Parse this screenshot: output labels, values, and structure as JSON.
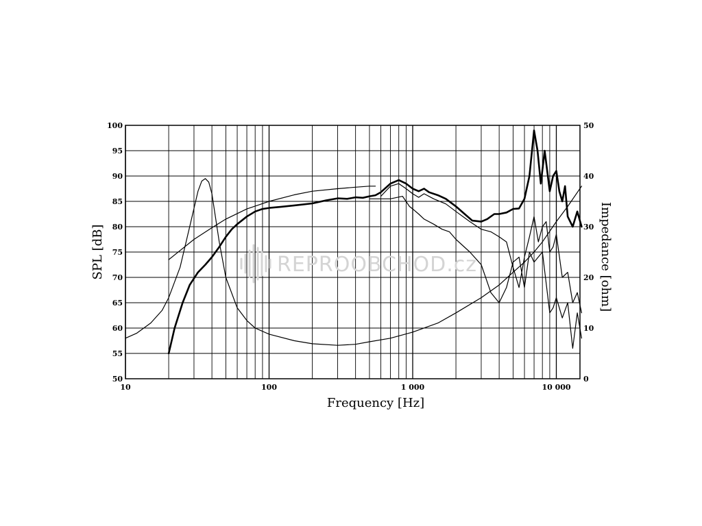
{
  "chart_data": {
    "type": "line",
    "xlabel": "Frequency [Hz]",
    "ylabel_left": "SPL [dB]",
    "ylabel_right": "Impedance [ohm]",
    "x_scale": "log",
    "xlim": [
      10,
      15000
    ],
    "ylim_left": [
      50,
      100
    ],
    "ylim_right": [
      0,
      50
    ],
    "grid": true,
    "x_tick_labels": [
      {
        "value": 10,
        "label": "10"
      },
      {
        "value": 100,
        "label": "100"
      },
      {
        "value": 1000,
        "label": "1 000"
      },
      {
        "value": 10000,
        "label": "10 000"
      }
    ],
    "y_left_ticks": [
      "50",
      "55",
      "60",
      "65",
      "70",
      "75",
      "80",
      "85",
      "90",
      "95",
      "100"
    ],
    "y_right_ticks": [
      "0",
      "10",
      "20",
      "30",
      "40",
      "50"
    ],
    "watermark": "REPROOBCHOD.cz",
    "series": [
      {
        "axis": "left",
        "stroke": "#000000",
        "weight": "heavy",
        "points": [
          [
            20,
            55
          ],
          [
            22,
            60
          ],
          [
            25,
            65
          ],
          [
            28,
            68.5
          ],
          [
            32,
            71
          ],
          [
            36,
            72.5
          ],
          [
            40,
            74
          ],
          [
            45,
            76
          ],
          [
            50,
            78
          ],
          [
            55,
            79.5
          ],
          [
            60,
            80.5
          ],
          [
            70,
            82
          ],
          [
            80,
            83
          ],
          [
            90,
            83.5
          ],
          [
            100,
            83.7
          ],
          [
            120,
            83.9
          ],
          [
            150,
            84.2
          ],
          [
            200,
            84.6
          ],
          [
            250,
            85.2
          ],
          [
            300,
            85.6
          ],
          [
            350,
            85.5
          ],
          [
            400,
            85.8
          ],
          [
            450,
            85.7
          ],
          [
            500,
            86
          ],
          [
            550,
            86.2
          ],
          [
            600,
            86.8
          ],
          [
            700,
            88.5
          ],
          [
            800,
            89.2
          ],
          [
            900,
            88.5
          ],
          [
            1000,
            87.5
          ],
          [
            1100,
            87
          ],
          [
            1200,
            87.5
          ],
          [
            1300,
            86.8
          ],
          [
            1500,
            86.2
          ],
          [
            1700,
            85.5
          ],
          [
            2000,
            84
          ],
          [
            2300,
            82.5
          ],
          [
            2600,
            81.2
          ],
          [
            3000,
            81
          ],
          [
            3300,
            81.5
          ],
          [
            3700,
            82.5
          ],
          [
            4000,
            82.5
          ],
          [
            4500,
            82.8
          ],
          [
            5000,
            83.5
          ],
          [
            5500,
            83.6
          ],
          [
            6000,
            85.5
          ],
          [
            6500,
            90
          ],
          [
            7000,
            99
          ],
          [
            7400,
            95
          ],
          [
            7800,
            88.5
          ],
          [
            8300,
            95
          ],
          [
            9000,
            87
          ],
          [
            9500,
            90
          ],
          [
            10000,
            91
          ],
          [
            10500,
            87
          ],
          [
            11000,
            85
          ],
          [
            11500,
            88
          ],
          [
            12000,
            82
          ],
          [
            13000,
            80
          ],
          [
            14000,
            83
          ],
          [
            15000,
            80
          ]
        ]
      },
      {
        "axis": "left",
        "stroke": "#000000",
        "weight": "thin",
        "points": [
          [
            600,
            86
          ],
          [
            700,
            88
          ],
          [
            800,
            88.5
          ],
          [
            900,
            87.5
          ],
          [
            1000,
            86.5
          ],
          [
            1100,
            85.8
          ],
          [
            1200,
            86.5
          ],
          [
            1400,
            85.5
          ],
          [
            1700,
            84.5
          ],
          [
            2000,
            83
          ],
          [
            2500,
            81
          ],
          [
            3000,
            79.5
          ],
          [
            3500,
            79
          ],
          [
            4000,
            78
          ],
          [
            4500,
            77
          ],
          [
            5000,
            72
          ],
          [
            5500,
            68
          ],
          [
            6000,
            74
          ],
          [
            6500,
            78
          ],
          [
            7000,
            82
          ],
          [
            7500,
            77
          ],
          [
            8000,
            80
          ],
          [
            8500,
            81
          ],
          [
            9000,
            75
          ],
          [
            9500,
            76
          ],
          [
            10000,
            78.5
          ],
          [
            11000,
            70
          ],
          [
            12000,
            71
          ],
          [
            13000,
            65
          ],
          [
            14000,
            67
          ],
          [
            15000,
            63
          ]
        ]
      },
      {
        "axis": "left",
        "stroke": "#000000",
        "weight": "thin",
        "points": [
          [
            500,
            85.5
          ],
          [
            700,
            85.5
          ],
          [
            850,
            86
          ],
          [
            950,
            84
          ],
          [
            1000,
            83.5
          ],
          [
            1100,
            82.5
          ],
          [
            1200,
            81.5
          ],
          [
            1400,
            80.5
          ],
          [
            1600,
            79.5
          ],
          [
            1800,
            79
          ],
          [
            2000,
            77.5
          ],
          [
            2500,
            75
          ],
          [
            3000,
            72.5
          ],
          [
            3500,
            67
          ],
          [
            4000,
            65
          ],
          [
            4500,
            68
          ],
          [
            5000,
            73
          ],
          [
            5500,
            74
          ],
          [
            6000,
            68
          ],
          [
            6500,
            75
          ],
          [
            7000,
            73
          ],
          [
            8000,
            75
          ],
          [
            9000,
            63
          ],
          [
            9500,
            64
          ],
          [
            10000,
            66
          ],
          [
            11000,
            62
          ],
          [
            12000,
            65
          ],
          [
            13000,
            56
          ],
          [
            14000,
            63
          ],
          [
            15000,
            58
          ]
        ]
      },
      {
        "axis": "left",
        "stroke": "#000000",
        "weight": "thin",
        "points": [
          [
            20,
            73.5
          ],
          [
            30,
            77.5
          ],
          [
            40,
            79.8
          ],
          [
            50,
            81.5
          ],
          [
            70,
            83.5
          ],
          [
            100,
            85
          ],
          [
            150,
            86.3
          ],
          [
            200,
            87
          ],
          [
            300,
            87.5
          ],
          [
            400,
            87.8
          ],
          [
            500,
            88
          ],
          [
            550,
            88
          ]
        ]
      },
      {
        "axis": "right",
        "stroke": "#000000",
        "weight": "thin",
        "points": [
          [
            10,
            8
          ],
          [
            12,
            9
          ],
          [
            15,
            11
          ],
          [
            18,
            13.5
          ],
          [
            20,
            16
          ],
          [
            24,
            22
          ],
          [
            28,
            30
          ],
          [
            32,
            37
          ],
          [
            34,
            39
          ],
          [
            36,
            39.5
          ],
          [
            38,
            38.8
          ],
          [
            40,
            36.5
          ],
          [
            45,
            27
          ],
          [
            50,
            20
          ],
          [
            60,
            14
          ],
          [
            70,
            11.5
          ],
          [
            80,
            10
          ],
          [
            100,
            8.8
          ],
          [
            150,
            7.5
          ],
          [
            200,
            6.9
          ],
          [
            300,
            6.6
          ],
          [
            400,
            6.8
          ],
          [
            500,
            7.3
          ],
          [
            700,
            8
          ],
          [
            1000,
            9.2
          ],
          [
            1500,
            11
          ],
          [
            2000,
            13
          ],
          [
            3000,
            16
          ],
          [
            4000,
            18.5
          ],
          [
            5000,
            21
          ],
          [
            6000,
            23
          ],
          [
            7000,
            25
          ],
          [
            8000,
            27
          ],
          [
            10000,
            31
          ],
          [
            12000,
            34
          ],
          [
            15000,
            38
          ]
        ]
      }
    ]
  }
}
